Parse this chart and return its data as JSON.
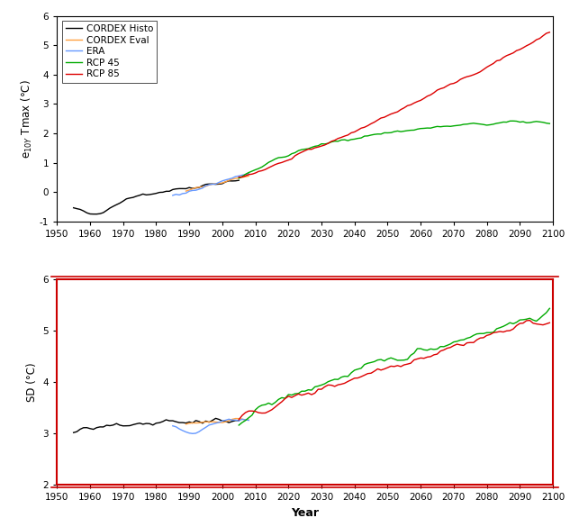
{
  "xlabel": "Year",
  "ylabel_upper": "e$_{10Y}$ Tmax (°C)",
  "ylabel_lower": "SD (°C)",
  "legend_labels": [
    "CORDEX Histo",
    "CORDEX Eval",
    "ERA",
    "RCP 45",
    "RCP 85"
  ],
  "colors": {
    "histo": "#000000",
    "eval": "#FFA040",
    "era": "#6699FF",
    "rcp45": "#00AA00",
    "rcp85": "#DD0000"
  },
  "upper_ylim": [
    -1,
    6
  ],
  "lower_ylim": [
    2,
    6
  ],
  "xticks": [
    1950,
    1960,
    1970,
    1980,
    1990,
    2000,
    2010,
    2020,
    2030,
    2040,
    2050,
    2060,
    2070,
    2080,
    2090,
    2100
  ],
  "upper_yticks": [
    -1,
    0,
    1,
    2,
    3,
    4,
    5,
    6
  ],
  "lower_yticks": [
    2,
    3,
    4,
    5,
    6
  ],
  "border_color": "#CC0000",
  "line_width": 1.0
}
